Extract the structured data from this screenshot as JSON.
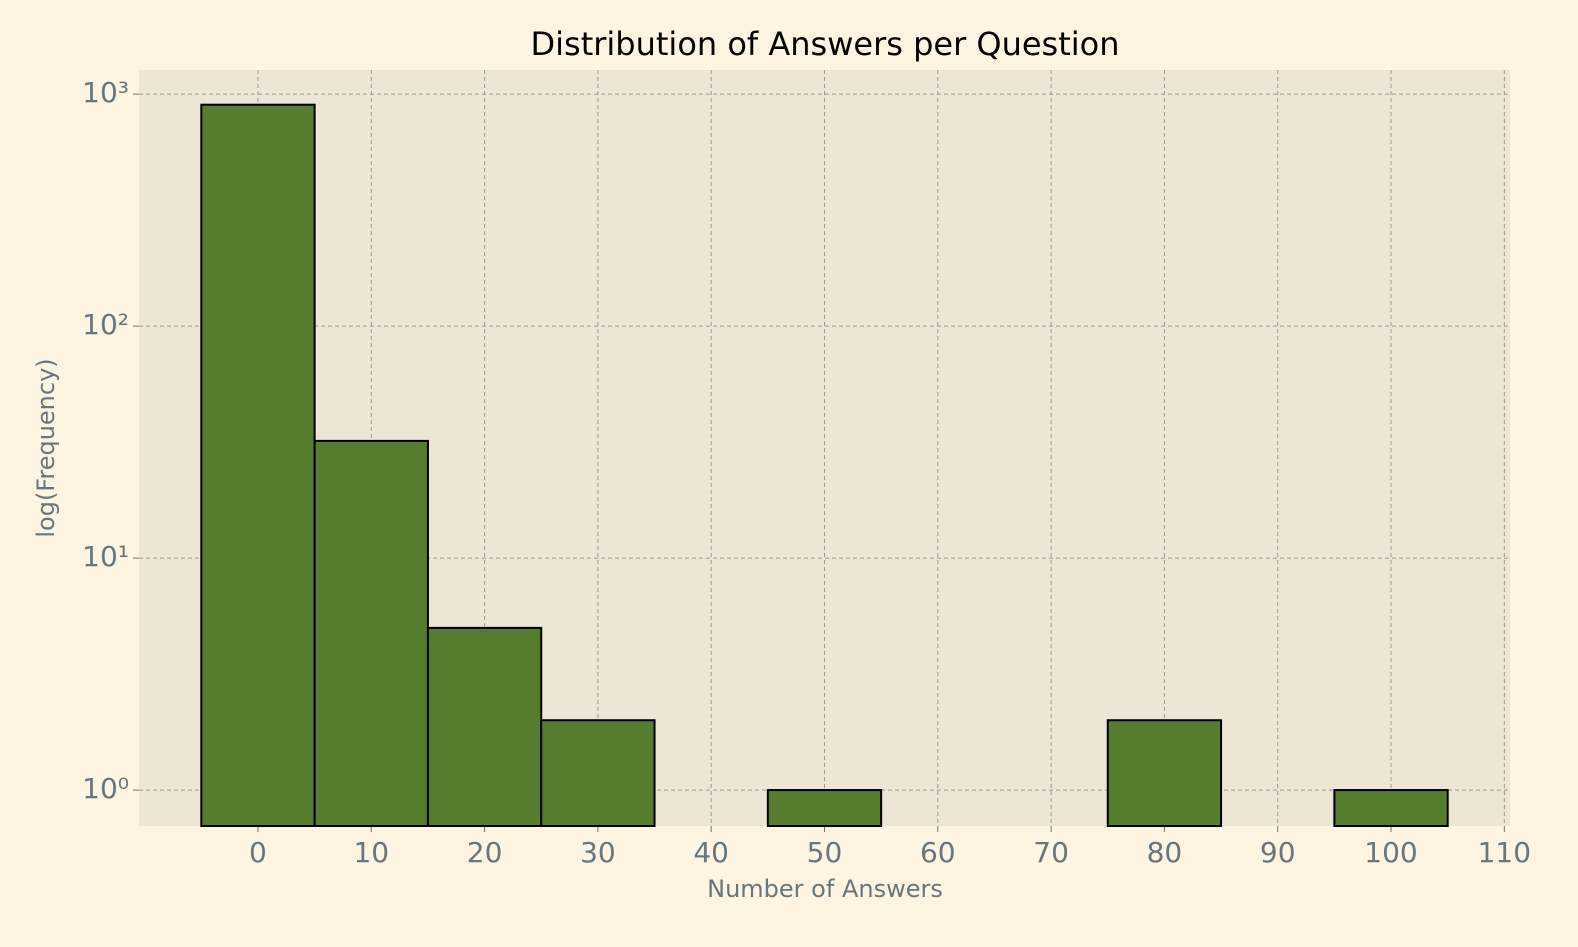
{
  "chart_data": {
    "type": "histogram",
    "title": "Distribution of Answers per Question",
    "xlabel": "Number of Answers",
    "ylabel": "log(Frequency)",
    "bins": [
      -5,
      5,
      15,
      25,
      35,
      45,
      55,
      65,
      75,
      85,
      95,
      105
    ],
    "values": [
      900,
      32,
      5,
      2,
      0,
      1,
      0,
      0,
      2,
      0,
      1
    ],
    "color": "#567d2e",
    "edgecolor": "#000000",
    "xlim": [
      -10.5,
      110.5
    ],
    "xticks": [
      0,
      10,
      20,
      30,
      40,
      50,
      60,
      70,
      80,
      90,
      100,
      110
    ],
    "ylim": [
      0.7,
      1270
    ],
    "yscale": "log",
    "yticks": [
      {
        "value": 1,
        "label": "10⁰"
      },
      {
        "value": 10,
        "label": "10¹"
      },
      {
        "value": 100,
        "label": "10²"
      },
      {
        "value": 1000,
        "label": "10³"
      }
    ],
    "grid": true
  }
}
